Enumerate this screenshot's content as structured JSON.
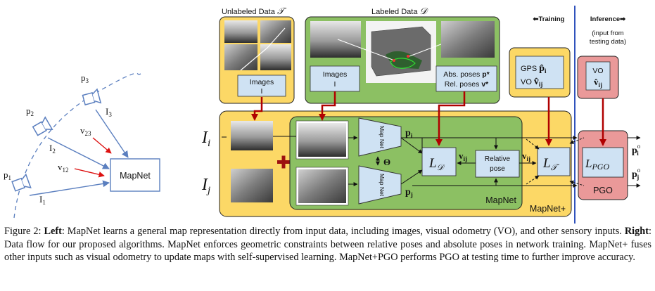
{
  "left_diagram": {
    "poses": [
      "p",
      "p",
      "p"
    ],
    "pose_subs": [
      "1",
      "2",
      "3"
    ],
    "images": [
      "I",
      "I",
      "I"
    ],
    "image_subs": [
      "1",
      "2",
      "3"
    ],
    "vo": [
      "v",
      "v"
    ],
    "vo_subs": [
      "12",
      "23"
    ],
    "mapnet_label": "MapNet"
  },
  "right_diagram": {
    "unlabeled_title": "Unlabeled Data",
    "unlabeled_symbol": "𝒯",
    "labeled_title": "Labeled Data",
    "labeled_symbol": "𝒟",
    "images_label": "Images",
    "images_symbol": "I",
    "abs_poses": "Abs. poses",
    "abs_sym": "p*",
    "rel_poses": "Rel. poses",
    "rel_sym": "v*",
    "training_label": "⬅Training",
    "inference_label": "Inference➡",
    "inference_note_1": "(input from",
    "inference_note_2": "testing data)",
    "gps": "GPS",
    "vo": "VO",
    "input_i": "I",
    "input_i_sub": "i",
    "input_j": "I",
    "input_j_sub": "j",
    "mapnet_box": "Map Net",
    "theta": "Θ",
    "out_pi": "p",
    "out_pi_sub": "i",
    "out_pj": "p",
    "out_pj_sub": "j",
    "loss_d": "L",
    "loss_d_sub": "𝒟",
    "vij": "v",
    "vij_sub": "ij",
    "relative_pose_1": "Relative",
    "relative_pose_2": "pose",
    "loss_t": "L",
    "loss_t_sub": "𝒯",
    "lpgo": "L",
    "lpgo_sub": "PGO",
    "pgo": "PGO",
    "out_pio": "p",
    "out_pio_sub": "i",
    "out_pio_sup": "o",
    "out_pjo": "p",
    "out_pjo_sub": "j",
    "out_pjo_sup": "o",
    "mapnet_label": "MapNet",
    "mapnetplus_label": "MapNet+"
  },
  "caption": {
    "prefix": "Figure 2: ",
    "left_label": "Left",
    "left_text": ": MapNet learns a general map representation directly from input data, including images, visual odometry (VO), and other sensory inputs. ",
    "right_label": "Right",
    "right_text": ": Data flow for our proposed algorithms. MapNet enforces geometric constraints between relative poses and absolute poses in network training. MapNet+ fuses other inputs such as visual odometry to update maps with self-supervised learning. MapNet+PGO performs PGO at testing time to further improve accuracy."
  },
  "colors": {
    "yellow": "#fcd866",
    "green": "#8cc063",
    "blue_box": "#cfe2f3",
    "pink": "#ea9999",
    "red_arrow": "#c00000",
    "blue_arrow": "#5b7fbf",
    "divider": "#1a3fb4"
  }
}
